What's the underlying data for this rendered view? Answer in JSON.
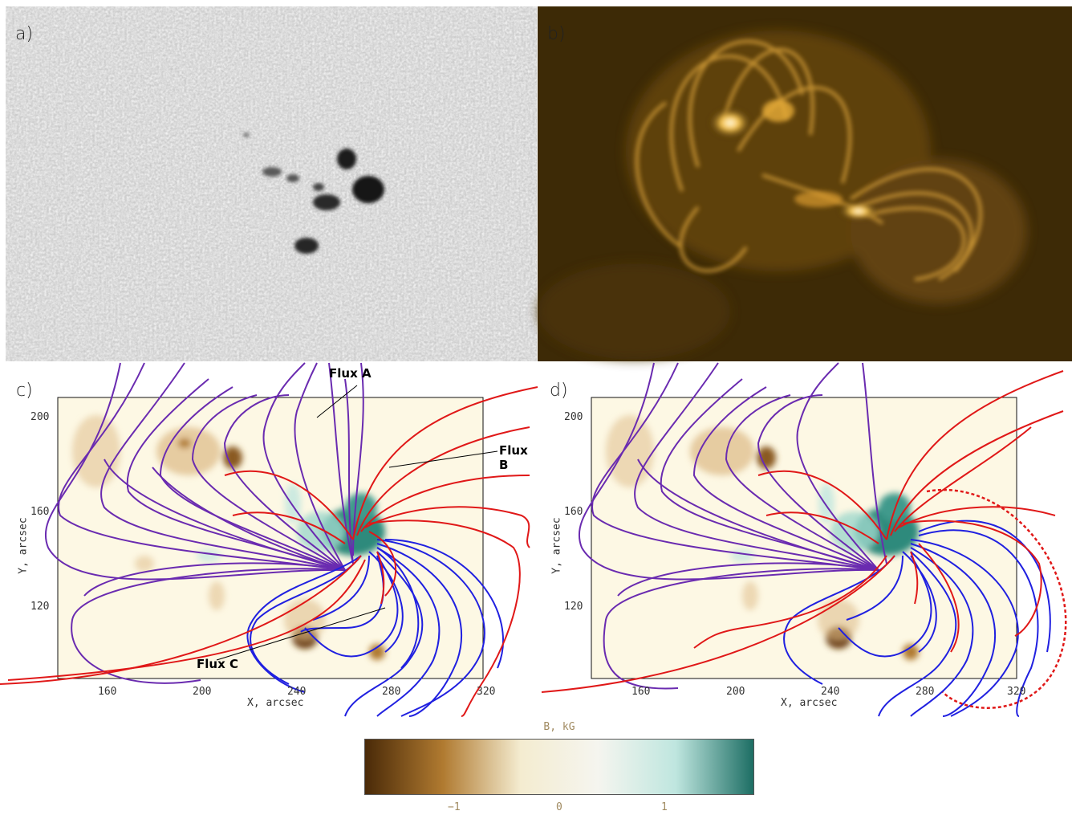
{
  "panels": {
    "a": {
      "label": "a)"
    },
    "b": {
      "label": "b)"
    },
    "c": {
      "label": "c)",
      "xlabel": "X, arcsec",
      "ylabel": "Y, arcsec",
      "xticks": [
        "160",
        "200",
        "240",
        "280",
        "320"
      ],
      "yticks": [
        "200",
        "160",
        "120"
      ],
      "annotations": [
        "Flux A",
        "Flux B",
        "Flux C"
      ]
    },
    "d": {
      "label": "d)",
      "xlabel": "X, arcsec",
      "ylabel": "Y, arcsec",
      "xticks": [
        "160",
        "200",
        "240",
        "280",
        "320"
      ],
      "yticks": [
        "200",
        "160",
        "120"
      ]
    }
  },
  "colorbar": {
    "title": "B, kG",
    "ticks": [
      "−1",
      "0",
      "1"
    ],
    "colors": [
      "#4a2a08",
      "#b07a30",
      "#f4ecd0",
      "#f5f5ef",
      "#bfe6df",
      "#1d6e64"
    ]
  },
  "colors": {
    "purple_lines": "#6a2bb0",
    "blue_lines": "#2020e0",
    "red_lines": "#e01818",
    "map_background": "#fdf8e4"
  }
}
